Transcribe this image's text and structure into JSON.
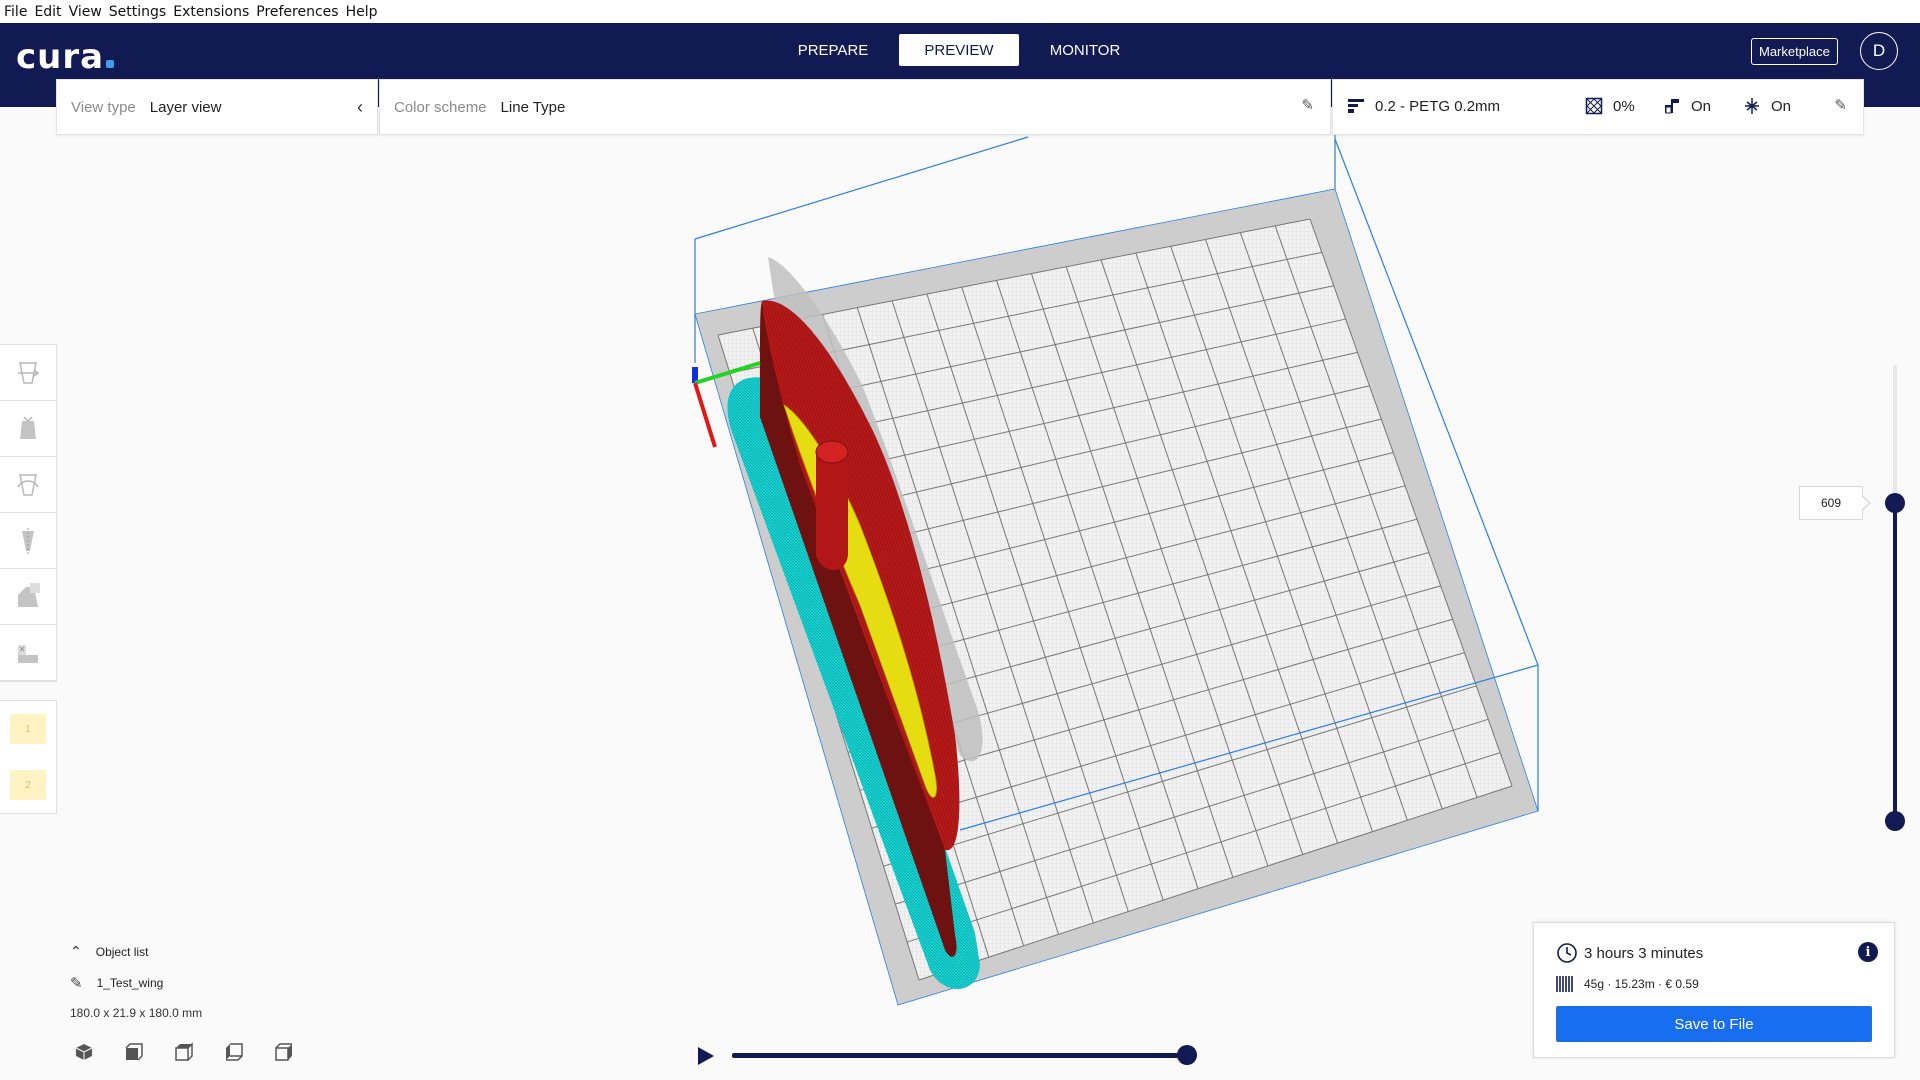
{
  "menu": [
    "File",
    "Edit",
    "View",
    "Settings",
    "Extensions",
    "Preferences",
    "Help"
  ],
  "header": {
    "logo": "cura",
    "stages": [
      {
        "label": "PREPARE",
        "active": false
      },
      {
        "label": "PREVIEW",
        "active": true
      },
      {
        "label": "MONITOR",
        "active": false
      }
    ],
    "marketplace_label": "Marketplace",
    "account_initial": "D"
  },
  "view_panel": {
    "label": "View type",
    "value": "Layer view"
  },
  "color_panel": {
    "label": "Color scheme",
    "value": "Line Type"
  },
  "print_setup": {
    "profile": "0.2 - PETG 0.2mm",
    "infill": "0%",
    "support": "On",
    "adhesion": "On"
  },
  "layer_slider": {
    "value": "609"
  },
  "extensions": [
    {
      "label": "1"
    },
    {
      "label": "2"
    }
  ],
  "object_list": {
    "title": "Object list",
    "object_name": "1_Test_wing",
    "dimensions": "180.0 x 21.9 x 180.0 mm"
  },
  "job": {
    "time": "3 hours 3 minutes",
    "material": "45g · 15.23m · € 0.59",
    "save_label": "Save to File"
  },
  "colors": {
    "header": "#121a53",
    "accent": "#196ef0",
    "wall_outer": "#d42222",
    "wall_inner": "#7a1414",
    "infill": "#e8e000",
    "skirt": "#16d2d2",
    "build_volume": "#2a7fe0"
  }
}
